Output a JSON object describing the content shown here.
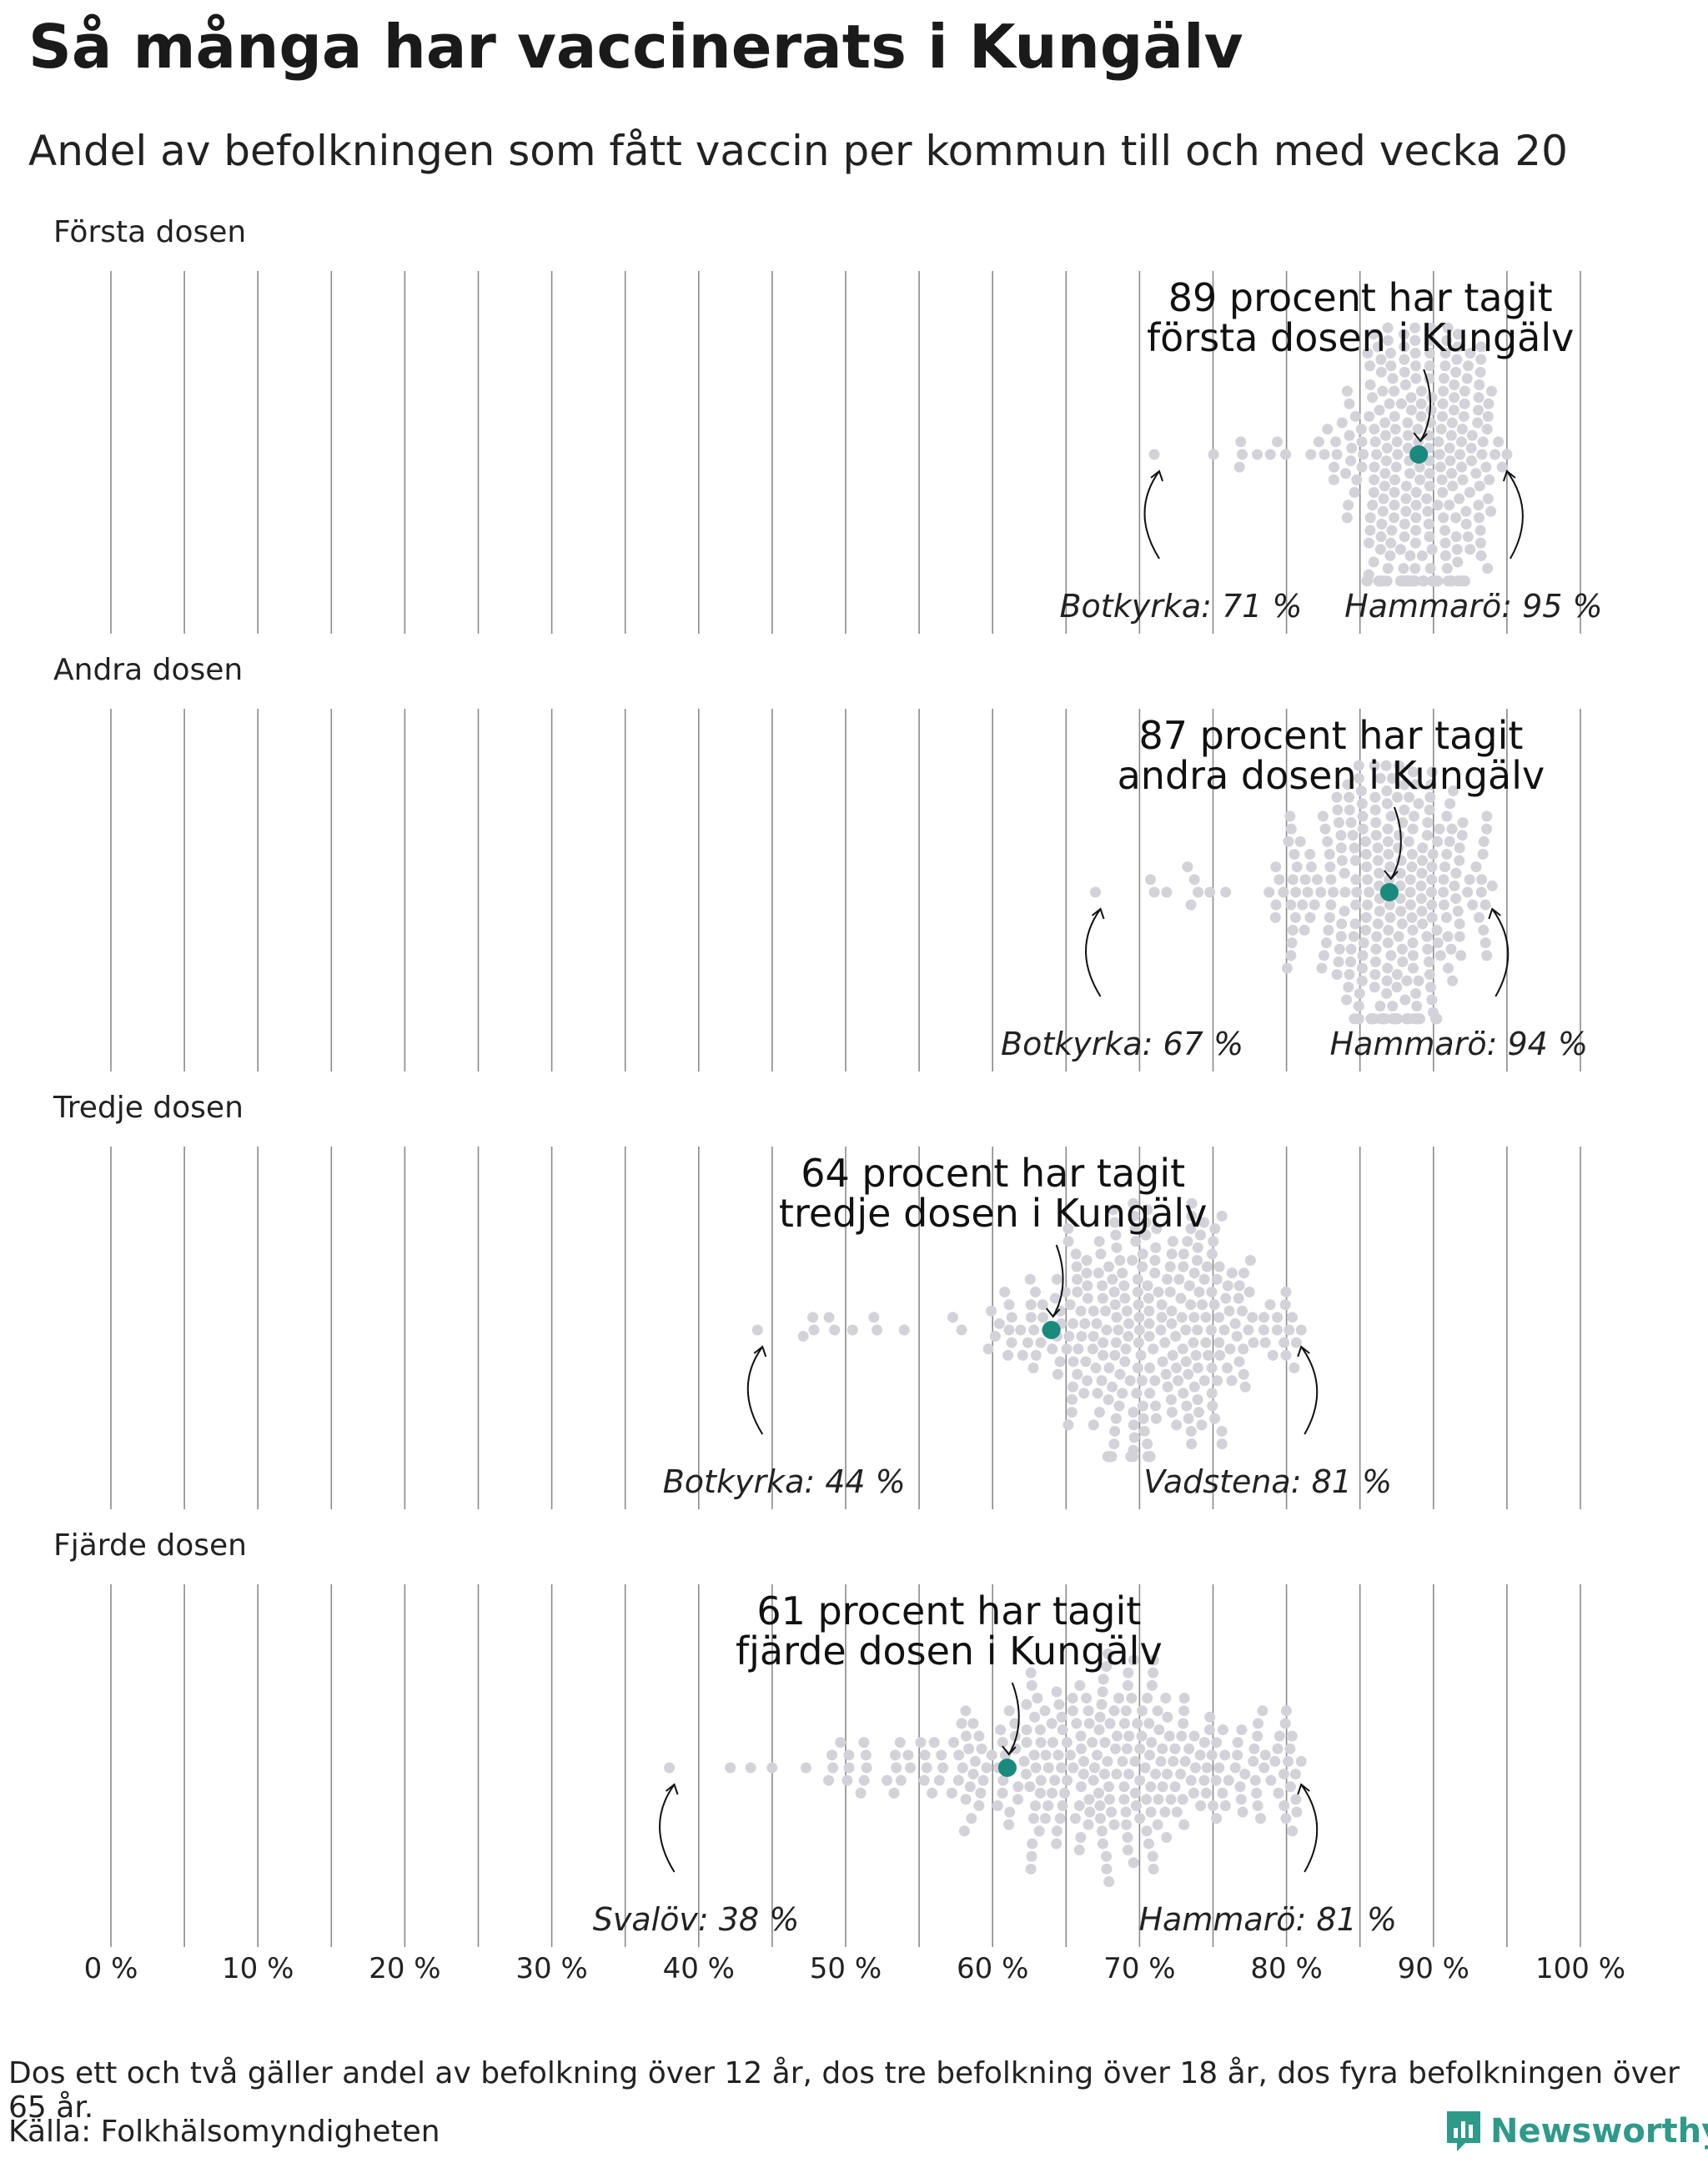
{
  "title": "Så många har vaccinerats i Kungälv",
  "subtitle": "Andel av befolkningen som fått vaccin per kommun till och med vecka 20",
  "footnote": "Dos ett och två gäller andel av befolkning över 12 år, dos tre befolkning över 18 år, dos fyra befolkningen över 65 år.",
  "source": "Källa: Folkhälsomyndigheten",
  "brand": "Newsworthy",
  "colors": {
    "highlight": "#1a8a7d",
    "dots": "#d3d2d9",
    "grid": "#8a8a8a",
    "brand": "#2e9a8a"
  },
  "chart_data": {
    "type": "beeswarm",
    "x_ticks": [
      "0 %",
      "10 %",
      "20 %",
      "30 %",
      "40 %",
      "50 %",
      "60 %",
      "70 %",
      "80 %",
      "90 %",
      "100 %"
    ],
    "xlim": [
      0,
      100
    ],
    "panels": [
      {
        "label": "Första dosen",
        "highlight_value": 89,
        "highlight_label_line1": "89 procent har tagit",
        "highlight_label_line2": "första dosen i Kungälv",
        "min_label": "Botkyrka: 71 %",
        "min_value": 71,
        "max_label": "Hammarö: 95 %",
        "max_value": 95,
        "center": 89,
        "spread": 2.8,
        "count": 290
      },
      {
        "label": "Andra dosen",
        "highlight_value": 87,
        "highlight_label_line1": "87 procent har tagit",
        "highlight_label_line2": "andra dosen i Kungälv",
        "min_label": "Botkyrka: 67 %",
        "min_value": 67,
        "max_label": "Hammarö: 94 %",
        "max_value": 94,
        "center": 87,
        "spread": 3.2,
        "count": 290
      },
      {
        "label": "Tredje dosen",
        "highlight_value": 64,
        "highlight_label_line1": "64 procent har tagit",
        "highlight_label_line2": "tredje dosen i Kungälv",
        "min_label": "Botkyrka: 44 %",
        "min_value": 44,
        "max_label": "Vadstena: 81 %",
        "max_value": 81,
        "center": 70,
        "spread": 4.8,
        "count": 290
      },
      {
        "label": "Fjärde dosen",
        "highlight_value": 61,
        "highlight_label_line1": "61 procent har tagit",
        "highlight_label_line2": "fjärde dosen i Kungälv",
        "min_label": "Svalöv: 38 %",
        "min_value": 38,
        "max_label": "Hammarö: 81 %",
        "max_value": 81,
        "center": 67,
        "spread": 7.5,
        "count": 290
      }
    ]
  }
}
